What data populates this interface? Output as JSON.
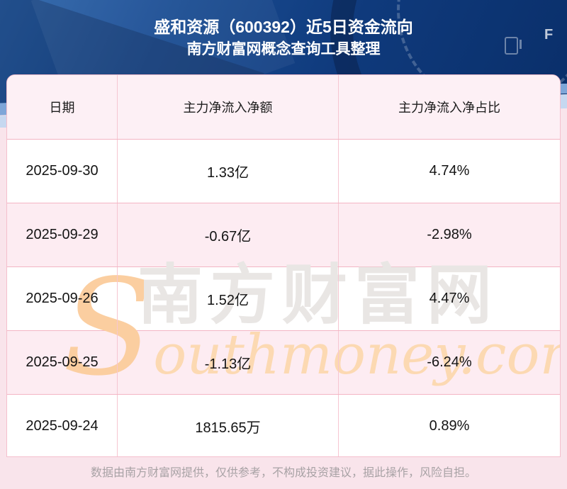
{
  "header": {
    "title_line1": "盛和资源（600392）近5日资金流向",
    "title_line2": "南方财富网概念查询工具整理",
    "gauge_letter": "F"
  },
  "chart_data": {
    "type": "table",
    "title": "盛和资源（600392）近5日资金流向",
    "subtitle": "南方财富网概念查询工具整理",
    "columns": [
      "日期",
      "主力净流入净额",
      "主力净流入净占比"
    ],
    "rows": [
      [
        "2025-09-30",
        "1.33亿",
        "4.74%"
      ],
      [
        "2025-09-29",
        "-0.67亿",
        "-2.98%"
      ],
      [
        "2025-09-26",
        "1.52亿",
        "4.47%"
      ],
      [
        "2025-09-25",
        "-1.13亿",
        "-6.24%"
      ],
      [
        "2025-09-24",
        "1815.65万",
        "0.89%"
      ]
    ],
    "x": [
      "2025-09-30",
      "2025-09-29",
      "2025-09-26",
      "2025-09-25",
      "2025-09-24"
    ],
    "series": [
      {
        "name": "主力净流入净额(亿元)",
        "values": [
          1.33,
          -0.67,
          1.52,
          -1.13,
          0.181565
        ]
      },
      {
        "name": "主力净流入净占比(%)",
        "values": [
          4.74,
          -2.98,
          4.47,
          -6.24,
          0.89
        ]
      }
    ],
    "legend_position": "none",
    "grid": true
  },
  "watermark": {
    "brand_cn": "南方财富网",
    "brand_en": "Southmoney.com"
  },
  "footer": {
    "disclaimer": "数据由南方财富网提供，仅供参考，不构成投资建议，据此操作，风险自担。"
  },
  "colors": {
    "hero_blue_dark": "#0a2f6a",
    "hero_blue": "#1c4f95",
    "stripe_light_blue": "#c6d8f0",
    "stripe_mid_blue": "#7ea6d8",
    "page_pink": "#f9e4eb",
    "header_row_pink": "#fdf0f5",
    "alt_row_pink": "#fdecf2",
    "table_border_pink": "#f3b5c4",
    "title_white": "#ffffff",
    "cell_text": "#141414",
    "watermark_gray": "#e9e6e4",
    "watermark_orange": "#fcd9b2",
    "disclaimer_gray": "#a8a2a5"
  }
}
